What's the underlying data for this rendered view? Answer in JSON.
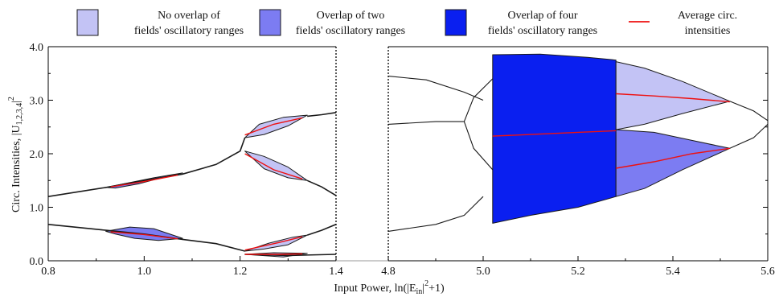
{
  "colors": {
    "none": "#c3c3f5",
    "two": "#7c7cf2",
    "four": "#0a1ff0",
    "avg": "#ee1111",
    "outline": "#1a1a1a"
  },
  "legend": [
    {
      "key": "none",
      "lines": [
        "No overlap of",
        "fields' oscillatory ranges"
      ]
    },
    {
      "key": "two",
      "lines": [
        "Overlap of two",
        "fields' oscillatory ranges"
      ]
    },
    {
      "key": "four",
      "lines": [
        "Overlap of four",
        "fields' oscillatory  ranges"
      ]
    },
    {
      "key": "avg",
      "lines": [
        "Average circ.",
        "intensities"
      ]
    }
  ],
  "axis": {
    "y_title_main": "Circ. Intensities, |U",
    "y_title_sub": "1,2,3,4",
    "y_title_sup": "2",
    "x_title_main": "Input Power, ln(|E",
    "x_title_sub": "in",
    "x_title_sup": "2",
    "x_title_end": "+1)"
  },
  "chart_data": [
    {
      "type": "line",
      "panel": "left",
      "xlim": [
        0.8,
        1.4
      ],
      "ylim": [
        0.0,
        4.0
      ],
      "xticks": [
        "0.8",
        "1.0",
        "1.2",
        "1.4"
      ],
      "xtick_values": [
        0.8,
        1.0,
        1.2,
        1.4
      ],
      "yticks": [
        "0.0",
        "1.0",
        "2.0",
        "3.0",
        "4.0"
      ],
      "ytick_values": [
        0.0,
        1.0,
        2.0,
        3.0,
        4.0
      ],
      "series": [
        {
          "kind": "curve",
          "values": [
            [
              0.8,
              1.2
            ],
            [
              0.92,
              1.37
            ],
            [
              1.0,
              1.5
            ],
            [
              1.08,
              1.62
            ],
            [
              1.15,
              1.8
            ],
            [
              1.2,
              2.05
            ],
            [
              1.21,
              2.3
            ]
          ]
        },
        {
          "kind": "curve",
          "values": [
            [
              1.34,
              1.5
            ],
            [
              1.37,
              1.38
            ],
            [
              1.4,
              1.22
            ]
          ]
        },
        {
          "kind": "curve",
          "values": [
            [
              1.34,
              2.7
            ],
            [
              1.37,
              2.73
            ],
            [
              1.4,
              2.77
            ]
          ]
        },
        {
          "kind": "curve",
          "values": [
            [
              0.8,
              0.68
            ],
            [
              0.92,
              0.57
            ],
            [
              1.0,
              0.5
            ],
            [
              1.08,
              0.4
            ],
            [
              1.15,
              0.32
            ],
            [
              1.21,
              0.18
            ]
          ]
        },
        {
          "kind": "curve",
          "values": [
            [
              1.34,
              0.48
            ],
            [
              1.37,
              0.57
            ],
            [
              1.4,
              0.68
            ]
          ]
        },
        {
          "kind": "curve",
          "values": [
            [
              1.21,
              0.12
            ],
            [
              1.3,
              0.1
            ],
            [
              1.4,
              0.12
            ]
          ]
        },
        {
          "kind": "region",
          "color": "two",
          "values": [
            [
              0.92,
              1.37
            ],
            [
              0.97,
              1.46
            ],
            [
              1.02,
              1.55
            ],
            [
              1.08,
              1.64
            ],
            [
              1.04,
              1.56
            ],
            [
              0.99,
              1.44
            ],
            [
              0.94,
              1.36
            ]
          ]
        },
        {
          "kind": "region",
          "color": "two",
          "values": [
            [
              0.92,
              0.55
            ],
            [
              0.97,
              0.63
            ],
            [
              1.02,
              0.6
            ],
            [
              1.08,
              0.42
            ],
            [
              1.03,
              0.38
            ],
            [
              0.98,
              0.42
            ],
            [
              0.94,
              0.5
            ]
          ]
        },
        {
          "kind": "region",
          "color": "none",
          "values": [
            [
              1.21,
              2.3
            ],
            [
              1.24,
              2.55
            ],
            [
              1.29,
              2.68
            ],
            [
              1.34,
              2.72
            ],
            [
              1.3,
              2.52
            ],
            [
              1.25,
              2.36
            ],
            [
              1.21,
              2.3
            ]
          ]
        },
        {
          "kind": "region",
          "color": "none",
          "values": [
            [
              1.21,
              2.05
            ],
            [
              1.25,
              1.72
            ],
            [
              1.3,
              1.55
            ],
            [
              1.34,
              1.5
            ],
            [
              1.3,
              1.75
            ],
            [
              1.25,
              1.95
            ],
            [
              1.21,
              2.05
            ]
          ]
        },
        {
          "kind": "region",
          "color": "none",
          "values": [
            [
              1.21,
              0.18
            ],
            [
              1.26,
              0.33
            ],
            [
              1.31,
              0.44
            ],
            [
              1.34,
              0.48
            ],
            [
              1.3,
              0.3
            ],
            [
              1.25,
              0.22
            ],
            [
              1.21,
              0.18
            ]
          ]
        },
        {
          "kind": "region",
          "color": "none",
          "values": [
            [
              1.21,
              0.12
            ],
            [
              1.27,
              0.15
            ],
            [
              1.34,
              0.14
            ],
            [
              1.29,
              0.07
            ],
            [
              1.21,
              0.12
            ]
          ]
        },
        {
          "kind": "avg",
          "values": [
            [
              0.93,
              1.38
            ],
            [
              1.0,
              1.48
            ],
            [
              1.07,
              1.6
            ]
          ]
        },
        {
          "kind": "avg",
          "values": [
            [
              0.93,
              0.54
            ],
            [
              1.0,
              0.49
            ],
            [
              1.07,
              0.41
            ]
          ]
        },
        {
          "kind": "avg",
          "values": [
            [
              1.21,
              2.35
            ],
            [
              1.27,
              2.55
            ],
            [
              1.33,
              2.67
            ]
          ]
        },
        {
          "kind": "avg",
          "values": [
            [
              1.21,
              2.0
            ],
            [
              1.27,
              1.7
            ],
            [
              1.33,
              1.53
            ]
          ]
        },
        {
          "kind": "avg",
          "values": [
            [
              1.21,
              0.2
            ],
            [
              1.28,
              0.34
            ],
            [
              1.33,
              0.45
            ]
          ]
        },
        {
          "kind": "avg",
          "values": [
            [
              1.21,
              0.12
            ],
            [
              1.28,
              0.12
            ],
            [
              1.33,
              0.13
            ]
          ]
        }
      ]
    },
    {
      "type": "line",
      "panel": "right",
      "xlim": [
        4.8,
        5.6
      ],
      "ylim": [
        0.0,
        4.0
      ],
      "xticks": [
        "4.8",
        "5.0",
        "5.2",
        "5.4",
        "5.6"
      ],
      "xtick_values": [
        4.8,
        5.0,
        5.2,
        5.4,
        5.6
      ],
      "series": [
        {
          "kind": "curve",
          "values": [
            [
              4.8,
              3.45
            ],
            [
              4.88,
              3.38
            ],
            [
              4.96,
              3.15
            ],
            [
              5.0,
              3.0
            ]
          ]
        },
        {
          "kind": "curve",
          "values": [
            [
              4.8,
              2.55
            ],
            [
              4.9,
              2.6
            ],
            [
              4.96,
              2.6
            ]
          ]
        },
        {
          "kind": "curve",
          "values": [
            [
              4.8,
              0.55
            ],
            [
              4.9,
              0.68
            ],
            [
              4.96,
              0.85
            ],
            [
              5.0,
              1.2
            ]
          ]
        },
        {
          "kind": "curve",
          "values": [
            [
              4.96,
              2.6
            ],
            [
              4.98,
              3.05
            ],
            [
              5.02,
              3.4
            ]
          ]
        },
        {
          "kind": "curve",
          "values": [
            [
              4.96,
              2.6
            ],
            [
              4.98,
              2.1
            ],
            [
              5.02,
              1.7
            ]
          ]
        },
        {
          "kind": "curve",
          "values": [
            [
              5.52,
              2.98
            ],
            [
              5.57,
              2.8
            ],
            [
              5.6,
              2.62
            ]
          ]
        },
        {
          "kind": "curve",
          "values": [
            [
              5.52,
              2.1
            ],
            [
              5.57,
              2.3
            ],
            [
              5.6,
              2.55
            ]
          ]
        },
        {
          "kind": "region",
          "color": "four",
          "values": [
            [
              5.02,
              3.85
            ],
            [
              5.12,
              3.86
            ],
            [
              5.22,
              3.8
            ],
            [
              5.28,
              3.75
            ],
            [
              5.28,
              1.2
            ],
            [
              5.2,
              1.0
            ],
            [
              5.1,
              0.85
            ],
            [
              5.02,
              0.7
            ]
          ]
        },
        {
          "kind": "region",
          "color": "none",
          "values": [
            [
              5.28,
              3.72
            ],
            [
              5.34,
              3.6
            ],
            [
              5.42,
              3.35
            ],
            [
              5.52,
              2.98
            ],
            [
              5.42,
              2.75
            ],
            [
              5.34,
              2.55
            ],
            [
              5.28,
              2.45
            ]
          ]
        },
        {
          "kind": "region",
          "color": "two",
          "values": [
            [
              5.28,
              2.45
            ],
            [
              5.36,
              2.4
            ],
            [
              5.44,
              2.25
            ],
            [
              5.52,
              2.1
            ],
            [
              5.42,
              1.7
            ],
            [
              5.34,
              1.35
            ],
            [
              5.28,
              1.2
            ]
          ]
        },
        {
          "kind": "avg",
          "values": [
            [
              5.02,
              2.33
            ],
            [
              5.1,
              2.36
            ],
            [
              5.2,
              2.4
            ],
            [
              5.28,
              2.43
            ]
          ]
        },
        {
          "kind": "avg",
          "values": [
            [
              5.28,
              3.12
            ],
            [
              5.36,
              3.08
            ],
            [
              5.44,
              3.03
            ],
            [
              5.52,
              2.97
            ]
          ]
        },
        {
          "kind": "avg",
          "values": [
            [
              5.28,
              1.73
            ],
            [
              5.36,
              1.85
            ],
            [
              5.44,
              2.0
            ],
            [
              5.52,
              2.1
            ]
          ]
        }
      ]
    }
  ]
}
